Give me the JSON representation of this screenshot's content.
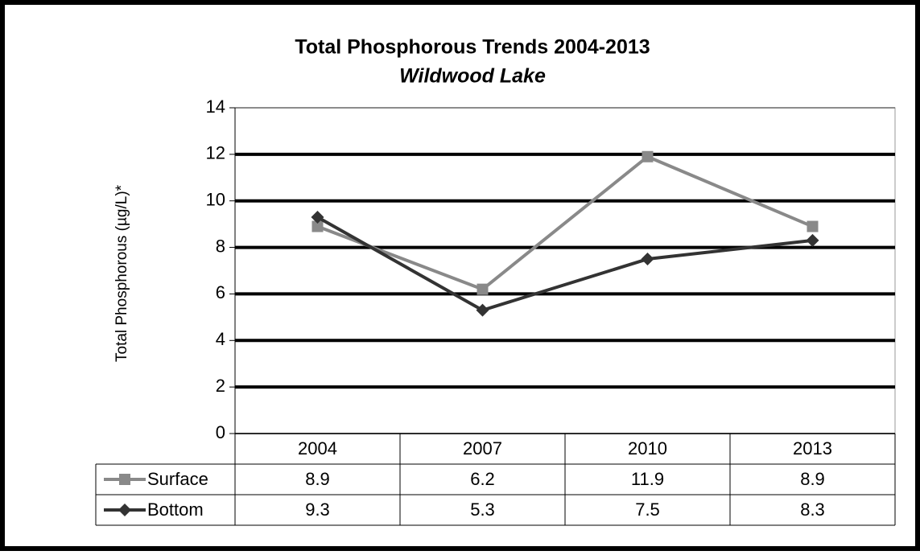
{
  "chart_data": {
    "type": "line",
    "title": "Total Phosphorous Trends 2004-2013",
    "subtitle": "Wildwood Lake",
    "y_label": "Total Phosphorous (µg/L)*",
    "categories": [
      "2004",
      "2007",
      "2010",
      "2013"
    ],
    "series": [
      {
        "name": "Surface",
        "color": "#898989",
        "marker": "square",
        "values": [
          8.9,
          6.2,
          11.9,
          8.9
        ]
      },
      {
        "name": "Bottom",
        "color": "#333333",
        "marker": "diamond",
        "values": [
          9.3,
          5.3,
          7.5,
          8.3
        ]
      }
    ],
    "ylim": [
      0,
      14
    ],
    "yticks": [
      0,
      2,
      4,
      6,
      8,
      10,
      12,
      14
    ],
    "grid": true
  }
}
